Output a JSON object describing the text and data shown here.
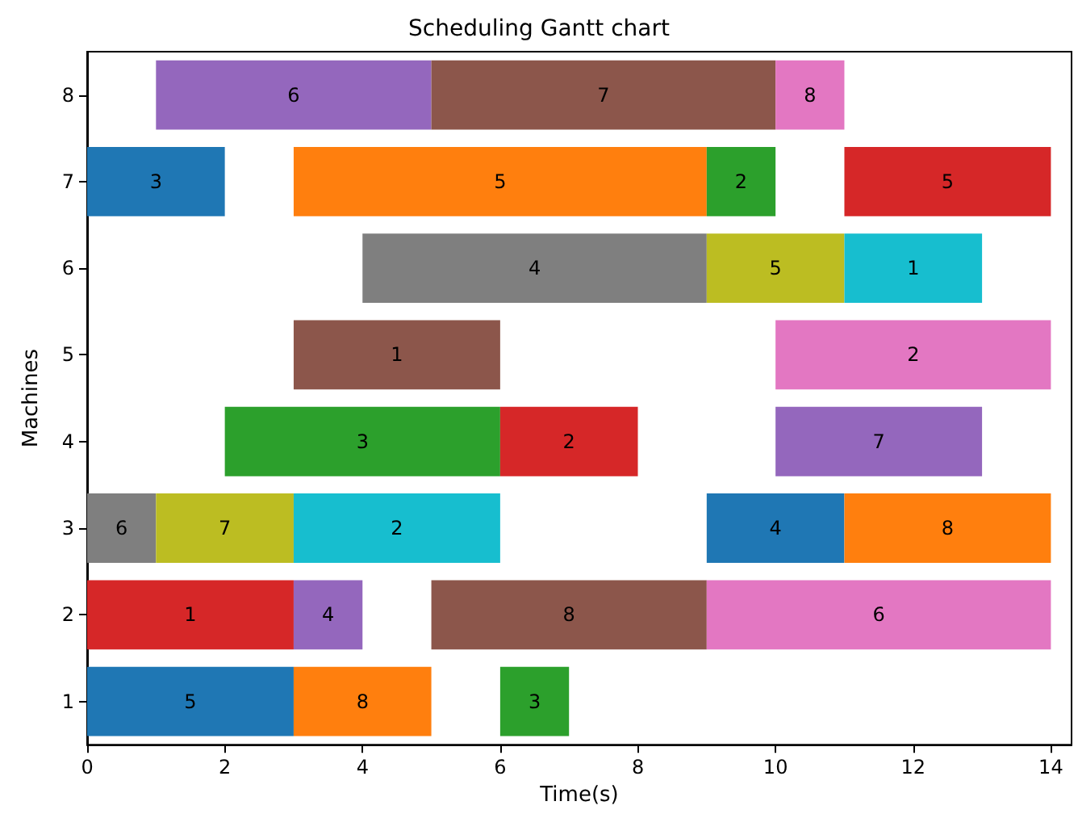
{
  "chart_data": {
    "type": "bar",
    "orientation": "horizontal",
    "title": "Scheduling Gantt chart",
    "xlabel": "Time(s)",
    "ylabel": "Machines",
    "categories": [
      "8",
      "7",
      "6",
      "5",
      "4",
      "3",
      "2",
      "1"
    ],
    "xlim": [
      0,
      14.3
    ],
    "xticks": [
      0,
      2,
      4,
      6,
      8,
      10,
      12,
      14
    ],
    "grid": false,
    "series": [
      {
        "base": [
          1,
          0,
          4,
          3,
          2,
          0,
          0,
          0
        ],
        "values": [
          4,
          2,
          5,
          3,
          4,
          1,
          3,
          3
        ],
        "colors": [
          "#9467bd",
          "#1f77b4",
          "#7f7f7f",
          "#8c564b",
          "#2ca02c",
          "#7f7f7f",
          "#d62728",
          "#1f77b4"
        ]
      },
      {
        "base": [
          5,
          3,
          9,
          10,
          6,
          1,
          3,
          3
        ],
        "values": [
          5,
          6,
          2,
          4,
          2,
          2,
          1,
          2
        ],
        "colors": [
          "#8c564b",
          "#ff7f0e",
          "#bcbd22",
          "#e377c2",
          "#d62728",
          "#bcbd22",
          "#9467bd",
          "#ff7f0e"
        ]
      },
      {
        "base": [
          10,
          9,
          11,
          null,
          10,
          3,
          5,
          6
        ],
        "values": [
          1,
          1,
          2,
          null,
          3,
          3,
          4,
          1
        ],
        "colors": [
          "#e377c2",
          "#2ca02c",
          "#17becf",
          null,
          "#9467bd",
          "#17becf",
          "#8c564b",
          "#2ca02c"
        ]
      },
      {
        "base": [
          null,
          11,
          null,
          null,
          null,
          9,
          9,
          null
        ],
        "values": [
          null,
          3,
          null,
          null,
          null,
          2,
          5,
          null
        ],
        "colors": [
          null,
          "#d62728",
          null,
          null,
          null,
          "#1f77b4",
          "#e377c2",
          null
        ]
      },
      {
        "base": [
          null,
          null,
          null,
          null,
          null,
          11,
          null,
          null
        ],
        "values": [
          null,
          null,
          null,
          null,
          null,
          3,
          null,
          null
        ],
        "colors": [
          null,
          null,
          null,
          null,
          null,
          "#ff7f0e",
          null,
          null
        ]
      }
    ],
    "annotations": [
      {
        "text": "6",
        "x": 3,
        "y": "8"
      },
      {
        "text": "7",
        "x": 7.5,
        "y": "8"
      },
      {
        "text": "8",
        "x": 10.5,
        "y": "8"
      },
      {
        "text": "3",
        "x": 1,
        "y": "7"
      },
      {
        "text": "5",
        "x": 6,
        "y": "7"
      },
      {
        "text": "2",
        "x": 9.5,
        "y": "7"
      },
      {
        "text": "5",
        "x": 12.5,
        "y": "7"
      },
      {
        "text": "4",
        "x": 6.5,
        "y": "6"
      },
      {
        "text": "5",
        "x": 10,
        "y": "6"
      },
      {
        "text": "1",
        "x": 12,
        "y": "6"
      },
      {
        "text": "1",
        "x": 4.5,
        "y": "5"
      },
      {
        "text": "2",
        "x": 12,
        "y": "5"
      },
      {
        "text": "3",
        "x": 4,
        "y": "4"
      },
      {
        "text": "2",
        "x": 7,
        "y": "4"
      },
      {
        "text": "7",
        "x": 11.5,
        "y": "4"
      },
      {
        "text": "6",
        "x": 0.5,
        "y": "3"
      },
      {
        "text": "7",
        "x": 2,
        "y": "3"
      },
      {
        "text": "2",
        "x": 4.5,
        "y": "3"
      },
      {
        "text": "4",
        "x": 10,
        "y": "3"
      },
      {
        "text": "8",
        "x": 12.5,
        "y": "3"
      },
      {
        "text": "1",
        "x": 1.5,
        "y": "2"
      },
      {
        "text": "4",
        "x": 3.5,
        "y": "2"
      },
      {
        "text": "8",
        "x": 7,
        "y": "2"
      },
      {
        "text": "6",
        "x": 11.5,
        "y": "2"
      },
      {
        "text": "5",
        "x": 1.5,
        "y": "1"
      },
      {
        "text": "8",
        "x": 4,
        "y": "1"
      },
      {
        "text": "3",
        "x": 6.5,
        "y": "1"
      }
    ]
  }
}
